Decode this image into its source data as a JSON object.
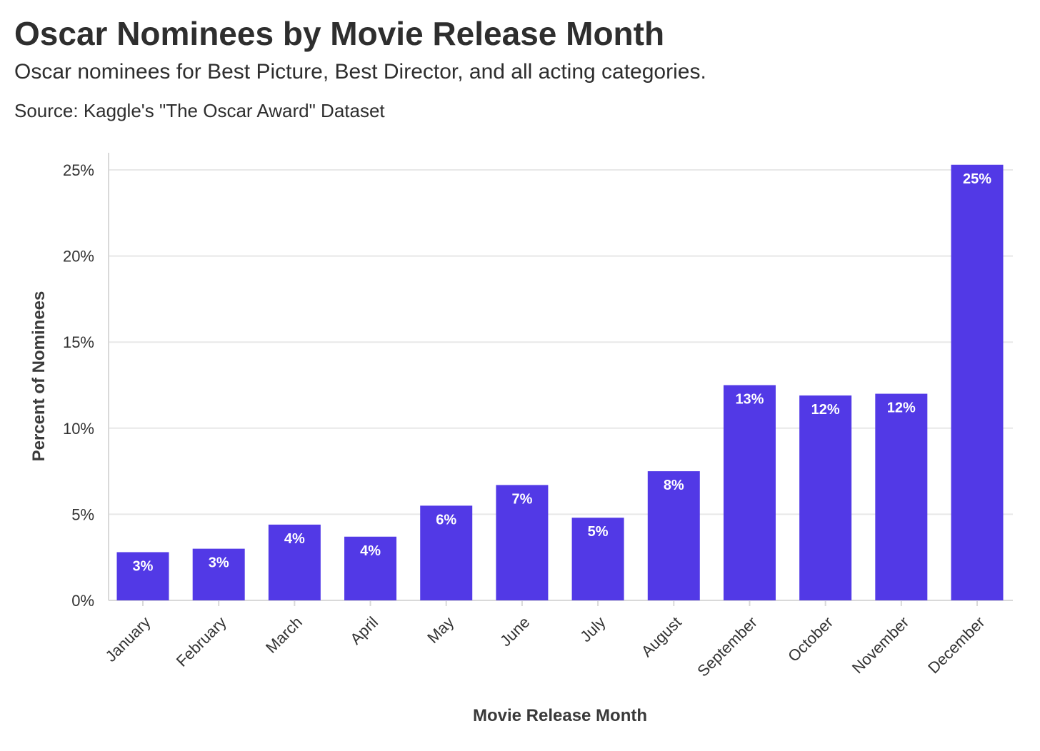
{
  "title": "Oscar Nominees by Movie Release Month",
  "subtitle": "Oscar nominees for Best Picture, Best Director, and all acting categories.",
  "source": "Source: Kaggle's \"The Oscar Award\" Dataset",
  "colors": {
    "bar": "#5239e6",
    "grid": "#e8e8e8",
    "axis": "#d9d9d9",
    "text": "#333333",
    "label": "#ffffff"
  },
  "chart_data": {
    "type": "bar",
    "xlabel": "Movie Release Month",
    "ylabel": "Percent of Nominees",
    "ylim": [
      0,
      26
    ],
    "yticks": [
      0,
      5,
      10,
      15,
      20,
      25
    ],
    "ytick_labels": [
      "0%",
      "5%",
      "10%",
      "15%",
      "20%",
      "25%"
    ],
    "grid": true,
    "categories": [
      "January",
      "February",
      "March",
      "April",
      "May",
      "June",
      "July",
      "August",
      "September",
      "October",
      "November",
      "December"
    ],
    "values": [
      2.8,
      3.0,
      4.4,
      3.7,
      5.5,
      6.7,
      4.8,
      7.5,
      12.5,
      11.9,
      12.0,
      25.3
    ],
    "data_labels": [
      "3%",
      "3%",
      "4%",
      "4%",
      "6%",
      "7%",
      "5%",
      "8%",
      "13%",
      "12%",
      "12%",
      "25%"
    ]
  }
}
